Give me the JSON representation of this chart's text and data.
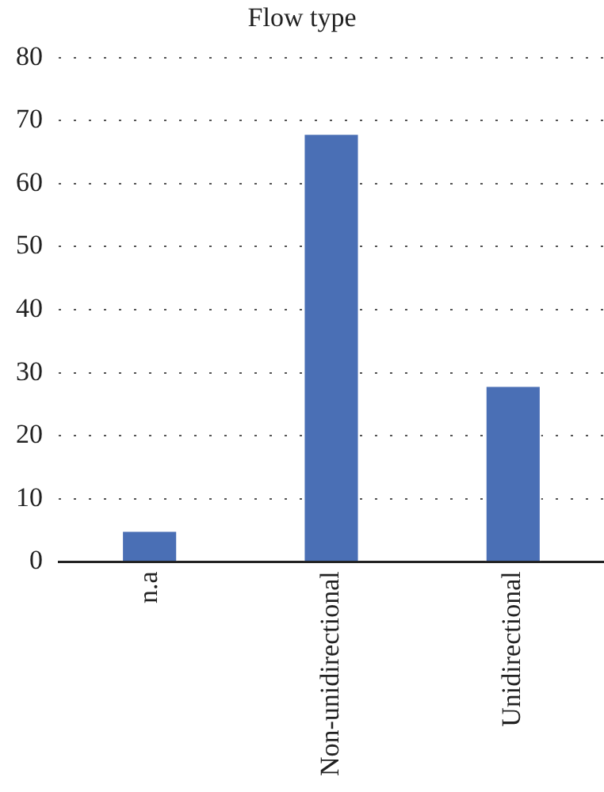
{
  "chart_data": {
    "type": "bar",
    "title": "Flow type",
    "categories": [
      "n.a",
      "Non-unidirectional",
      "Unidirectional"
    ],
    "values": [
      5,
      68,
      28
    ],
    "color": "#4a6fb5",
    "ylim": [
      0,
      80
    ],
    "yticks": [
      0,
      10,
      20,
      30,
      40,
      50,
      60,
      70,
      80
    ],
    "grid": "y"
  }
}
